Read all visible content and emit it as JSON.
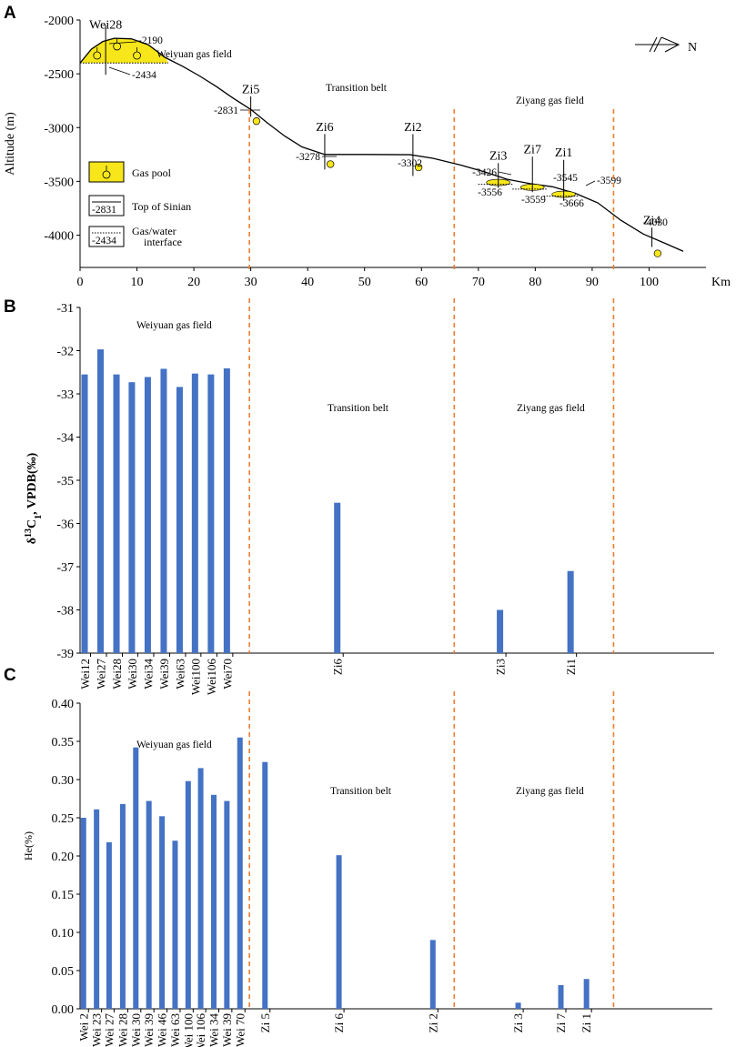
{
  "colors": {
    "bar": "#4472c4",
    "boundary": "#ed7d31",
    "gas": "#f7e619",
    "line": "#000000"
  },
  "chart_data": [
    {
      "panel": "A",
      "type": "line",
      "title": "",
      "xlabel": "Km",
      "ylabel": "Altitude (m)",
      "xlim": [
        0,
        110
      ],
      "ylim": [
        -4300,
        -2000
      ],
      "x_ticks": [
        0,
        10,
        20,
        30,
        40,
        50,
        60,
        70,
        80,
        90,
        100
      ],
      "y_ticks": [
        -2000,
        -2500,
        -3000,
        -3500,
        -4000
      ],
      "profile": [
        {
          "x": 0,
          "y": -2400
        },
        {
          "x": 2,
          "y": -2270
        },
        {
          "x": 4,
          "y": -2200
        },
        {
          "x": 6,
          "y": -2170
        },
        {
          "x": 9,
          "y": -2175
        },
        {
          "x": 12,
          "y": -2230
        },
        {
          "x": 15,
          "y": -2350
        },
        {
          "x": 18,
          "y": -2430
        },
        {
          "x": 21,
          "y": -2520
        },
        {
          "x": 24,
          "y": -2620
        },
        {
          "x": 27,
          "y": -2730
        },
        {
          "x": 30,
          "y": -2831
        },
        {
          "x": 33,
          "y": -2960
        },
        {
          "x": 36,
          "y": -3080
        },
        {
          "x": 39,
          "y": -3180
        },
        {
          "x": 43,
          "y": -3250
        },
        {
          "x": 50,
          "y": -3250
        },
        {
          "x": 58,
          "y": -3252
        },
        {
          "x": 62,
          "y": -3285
        },
        {
          "x": 67,
          "y": -3350
        },
        {
          "x": 71,
          "y": -3410
        },
        {
          "x": 75,
          "y": -3480
        },
        {
          "x": 79,
          "y": -3520
        },
        {
          "x": 83,
          "y": -3550
        },
        {
          "x": 87,
          "y": -3610
        },
        {
          "x": 91,
          "y": -3700
        },
        {
          "x": 95,
          "y": -3860
        },
        {
          "x": 99,
          "y": -3990
        },
        {
          "x": 103,
          "y": -4080
        },
        {
          "x": 106,
          "y": -4150
        }
      ],
      "wells": [
        {
          "name": "Wei28",
          "x": 4.5,
          "top": -2190,
          "gwc": -2434
        },
        {
          "name": "Zi5",
          "x": 30,
          "top": -2831
        },
        {
          "name": "Zi6",
          "x": 43,
          "top": -3278
        },
        {
          "name": "Zi2",
          "x": 58.5,
          "top": -3302
        },
        {
          "name": "Zi3",
          "x": 73.5,
          "top": -3426,
          "gwc": -3556
        },
        {
          "name": "Zi7",
          "x": 79.5,
          "top": -3545,
          "gwc": -3559
        },
        {
          "name": "Zi1",
          "x": 85,
          "top": -3599,
          "gwc": -3666
        },
        {
          "name": "Zi4",
          "x": 100.5,
          "top": -4030
        }
      ],
      "depth_labels": [
        "-2190",
        "-2434",
        "-2831",
        "-3278",
        "-3302",
        "-3426",
        "-3556",
        "-3545",
        "-3559",
        "-3599",
        "-3666",
        "-4030"
      ],
      "boundaries_km": [
        30,
        66,
        94
      ],
      "regions": [
        "Weiyuan gas field",
        "Transition belt",
        "Ziyang gas field"
      ],
      "legend": [
        {
          "label": "Gas pool"
        },
        {
          "label": "Top of Sinian",
          "sample": "-2831"
        },
        {
          "label_lines": [
            "Gas/water",
            "interface"
          ],
          "sample": "-2434"
        }
      ],
      "north_label": "N"
    },
    {
      "panel": "B",
      "type": "bar",
      "ylabel_main": "δ",
      "ylabel_sup": "13",
      "ylabel_c": "C",
      "ylabel_sub": "1",
      "ylabel_rest": ", VPDB(‰)",
      "ylim": [
        -39,
        -31
      ],
      "y_ticks": [
        -31,
        -32,
        -33,
        -34,
        -35,
        -36,
        -37,
        -38,
        -39
      ],
      "categories": [
        "Wei12",
        "Wei27",
        "Wei28",
        "Wei30",
        "Wei34",
        "Wei39",
        "Wei63",
        "Wei100",
        "Wei106",
        "Wei70",
        "Zi6",
        "Zi3",
        "Zi1"
      ],
      "x_km": [
        0.8,
        3.6,
        6.4,
        9.1,
        11.9,
        14.7,
        17.5,
        20.2,
        23.0,
        25.8,
        45.2,
        73.8,
        86.2
      ],
      "values": [
        -32.55,
        -31.97,
        -32.55,
        -32.73,
        -32.61,
        -32.42,
        -32.84,
        -32.53,
        -32.55,
        -32.41,
        -35.52,
        -38.0,
        -37.1
      ],
      "regions": [
        "Weiyuan gas field",
        "Transition belt",
        "Ziyang gas field"
      ]
    },
    {
      "panel": "C",
      "type": "bar",
      "ylabel": "He(%)",
      "ylim": [
        0,
        0.4
      ],
      "y_ticks": [
        "0.00",
        "0.05",
        "0.10",
        "0.15",
        "0.20",
        "0.25",
        "0.30",
        "0.35",
        "0.40"
      ],
      "categories": [
        "Wei 2",
        "Wei 23",
        "Wei 27",
        "Wei 28",
        "Wei 30",
        "Wei 39",
        "Wei 46",
        "Wei 63",
        "Wei 100",
        "Wei 106",
        "Wei 34",
        "Wei 39",
        "Wei 70",
        "Zi 5",
        "Zi 6",
        "Zi 2",
        "Zi 3",
        "Zi 7",
        "Zi 1"
      ],
      "x_km": [
        0.6,
        2.9,
        5.1,
        7.5,
        9.8,
        12.1,
        14.4,
        16.7,
        19.0,
        21.2,
        23.5,
        25.8,
        28.1,
        32.5,
        45.5,
        62.0,
        77.0,
        84.5,
        89.0
      ],
      "values": [
        0.25,
        0.261,
        0.218,
        0.268,
        0.342,
        0.272,
        0.252,
        0.22,
        0.298,
        0.315,
        0.28,
        0.272,
        0.355,
        0.323,
        0.201,
        0.09,
        0.008,
        0.031,
        0.039
      ],
      "regions": [
        "Weiyuan gas field",
        "Transition belt",
        "Ziyang gas field"
      ]
    }
  ]
}
